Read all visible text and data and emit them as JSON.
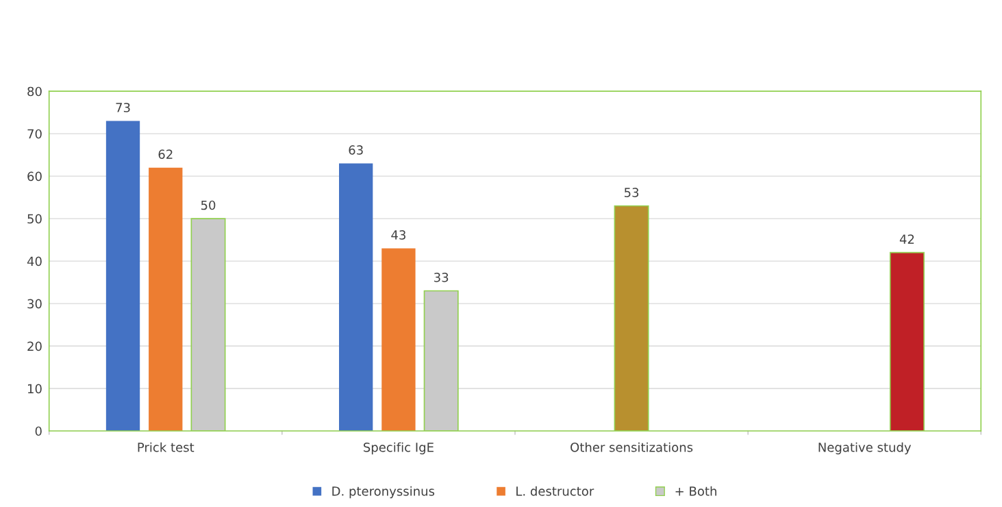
{
  "chart_data": {
    "type": "bar",
    "categories": [
      "Prick test",
      "Specific IgE",
      "Other sensitizations",
      "Negative study"
    ],
    "series": [
      {
        "name": "D. pteronyssinus",
        "color": "#4472c4",
        "values": [
          73,
          63,
          null,
          null
        ]
      },
      {
        "name": "L. destructor",
        "color": "#ed7d31",
        "colors": [
          "#ed7d31",
          "#ed7d31",
          "#b8902f",
          "#ed7d31"
        ],
        "values": [
          62,
          43,
          53,
          null
        ]
      },
      {
        "name": "+ Both",
        "color": "#c9c9c9",
        "colors": [
          "#c9c9c9",
          "#c9c9c9",
          "#c9c9c9",
          "#c02026"
        ],
        "values": [
          50,
          33,
          null,
          42
        ]
      }
    ],
    "ylim": [
      0,
      80
    ],
    "yticks": [
      0,
      10,
      20,
      30,
      40,
      50,
      60,
      70,
      80
    ],
    "grid": "y",
    "legend": "bottom",
    "data_labels": true
  }
}
